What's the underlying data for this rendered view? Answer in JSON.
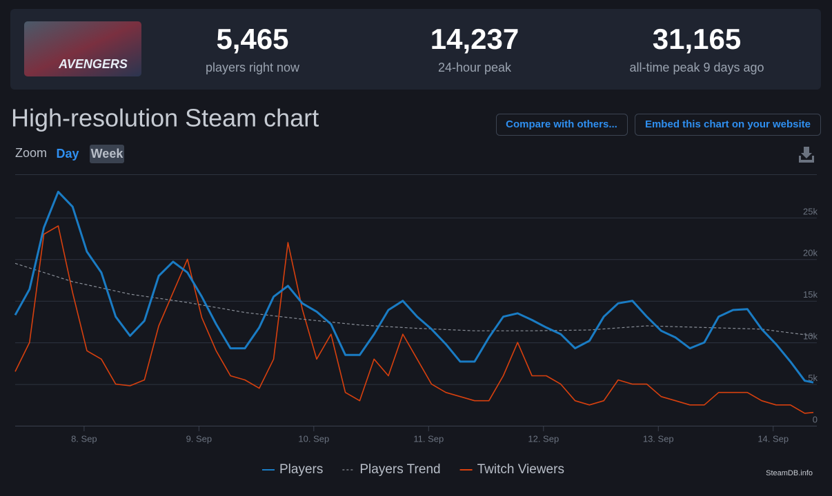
{
  "header": {
    "game_image_text": "AVENGERS",
    "stats": [
      {
        "value": "5,465",
        "label": "players right now"
      },
      {
        "value": "14,237",
        "label": "24-hour peak"
      },
      {
        "value": "31,165",
        "label": "all-time peak 9 days ago"
      }
    ]
  },
  "buttons": [
    "Compare with others...",
    "Embed this chart on your website"
  ],
  "zoom": {
    "label": "Zoom",
    "options": [
      "Day",
      "Week"
    ]
  },
  "credit": "SteamDB.info",
  "chart_data": {
    "type": "line",
    "title": "High-resolution Steam chart",
    "xlim": [
      7.4,
      14.38
    ],
    "xticks": [
      {
        "value": 8,
        "label": "8. Sep"
      },
      {
        "value": 9,
        "label": "9. Sep"
      },
      {
        "value": 10,
        "label": "10. Sep"
      },
      {
        "value": 11,
        "label": "11. Sep"
      },
      {
        "value": 12,
        "label": "12. Sep"
      },
      {
        "value": 13,
        "label": "13. Sep"
      },
      {
        "value": 14,
        "label": "14. Sep"
      }
    ],
    "ylim": [
      0,
      30200
    ],
    "yticks": [
      0,
      {
        "value": 5000,
        "label": "5k"
      },
      {
        "value": 10000,
        "label": "10k"
      },
      {
        "value": 15000,
        "label": "15k"
      },
      {
        "value": 20000,
        "label": "20k"
      },
      {
        "value": 25000,
        "label": "25k"
      }
    ],
    "grid": true,
    "series": [
      {
        "name": "Players",
        "color": "#1a7cc4",
        "dash": false,
        "x": [
          7.4,
          7.525,
          7.65,
          7.775,
          7.9,
          8.025,
          8.15,
          8.275,
          8.4,
          8.525,
          8.65,
          8.775,
          8.9,
          9.025,
          9.15,
          9.275,
          9.4,
          9.525,
          9.65,
          9.775,
          9.9,
          10.025,
          10.15,
          10.275,
          10.4,
          10.525,
          10.65,
          10.775,
          10.9,
          11.025,
          11.15,
          11.275,
          11.4,
          11.525,
          11.65,
          11.775,
          11.9,
          12.025,
          12.15,
          12.275,
          12.4,
          12.525,
          12.65,
          12.775,
          12.9,
          13.025,
          13.15,
          13.275,
          13.4,
          13.525,
          13.65,
          13.775,
          13.9,
          14.025,
          14.15,
          14.275,
          14.35
        ],
        "values": [
          13300,
          16400,
          23800,
          28100,
          26300,
          20900,
          18400,
          13100,
          10800,
          12600,
          18000,
          19700,
          18400,
          15500,
          12200,
          9300,
          9300,
          11800,
          15500,
          16800,
          14700,
          13700,
          12200,
          8500,
          8500,
          11000,
          13900,
          15000,
          13100,
          11600,
          9800,
          7700,
          7700,
          10600,
          13100,
          13500,
          12700,
          11800,
          11000,
          9300,
          10200,
          13100,
          14700,
          15000,
          13100,
          11400,
          10600,
          9300,
          10000,
          13100,
          13900,
          14000,
          11600,
          9800,
          7700,
          5400,
          5200
        ]
      },
      {
        "name": "Players Trend",
        "color": "#8a8f98",
        "dash": true,
        "x": [
          7.4,
          7.9,
          8.4,
          8.9,
          9.4,
          9.9,
          10.4,
          10.9,
          11.4,
          11.9,
          12.4,
          12.9,
          13.4,
          13.9,
          14.35
        ],
        "values": [
          19500,
          17300,
          15800,
          14800,
          13600,
          12800,
          12100,
          11700,
          11400,
          11400,
          11500,
          12000,
          11800,
          11600,
          10800
        ]
      },
      {
        "name": "Twitch Viewers",
        "color": "#d8400e",
        "dash": false,
        "x": [
          7.4,
          7.525,
          7.65,
          7.775,
          7.9,
          8.025,
          8.15,
          8.275,
          8.4,
          8.525,
          8.65,
          8.775,
          8.9,
          9.025,
          9.15,
          9.275,
          9.4,
          9.525,
          9.65,
          9.775,
          9.9,
          10.025,
          10.15,
          10.275,
          10.4,
          10.525,
          10.65,
          10.775,
          10.9,
          11.025,
          11.15,
          11.275,
          11.4,
          11.525,
          11.65,
          11.775,
          11.9,
          12.025,
          12.15,
          12.275,
          12.4,
          12.525,
          12.65,
          12.775,
          12.9,
          13.025,
          13.15,
          13.275,
          13.4,
          13.525,
          13.65,
          13.775,
          13.9,
          14.025,
          14.15,
          14.275,
          14.35
        ],
        "values": [
          6500,
          10000,
          23000,
          24000,
          16000,
          9000,
          8000,
          5000,
          4800,
          5500,
          12000,
          16000,
          20000,
          13000,
          9000,
          6000,
          5500,
          4500,
          8000,
          22000,
          14000,
          8000,
          11000,
          4000,
          3000,
          8000,
          6000,
          11000,
          8000,
          5000,
          4000,
          3500,
          3000,
          3000,
          6000,
          10000,
          6000,
          6000,
          5000,
          3000,
          2500,
          3000,
          5500,
          5000,
          5000,
          3500,
          3000,
          2500,
          2500,
          4000,
          4000,
          4000,
          3000,
          2500,
          2500,
          1500,
          1600
        ]
      }
    ]
  }
}
